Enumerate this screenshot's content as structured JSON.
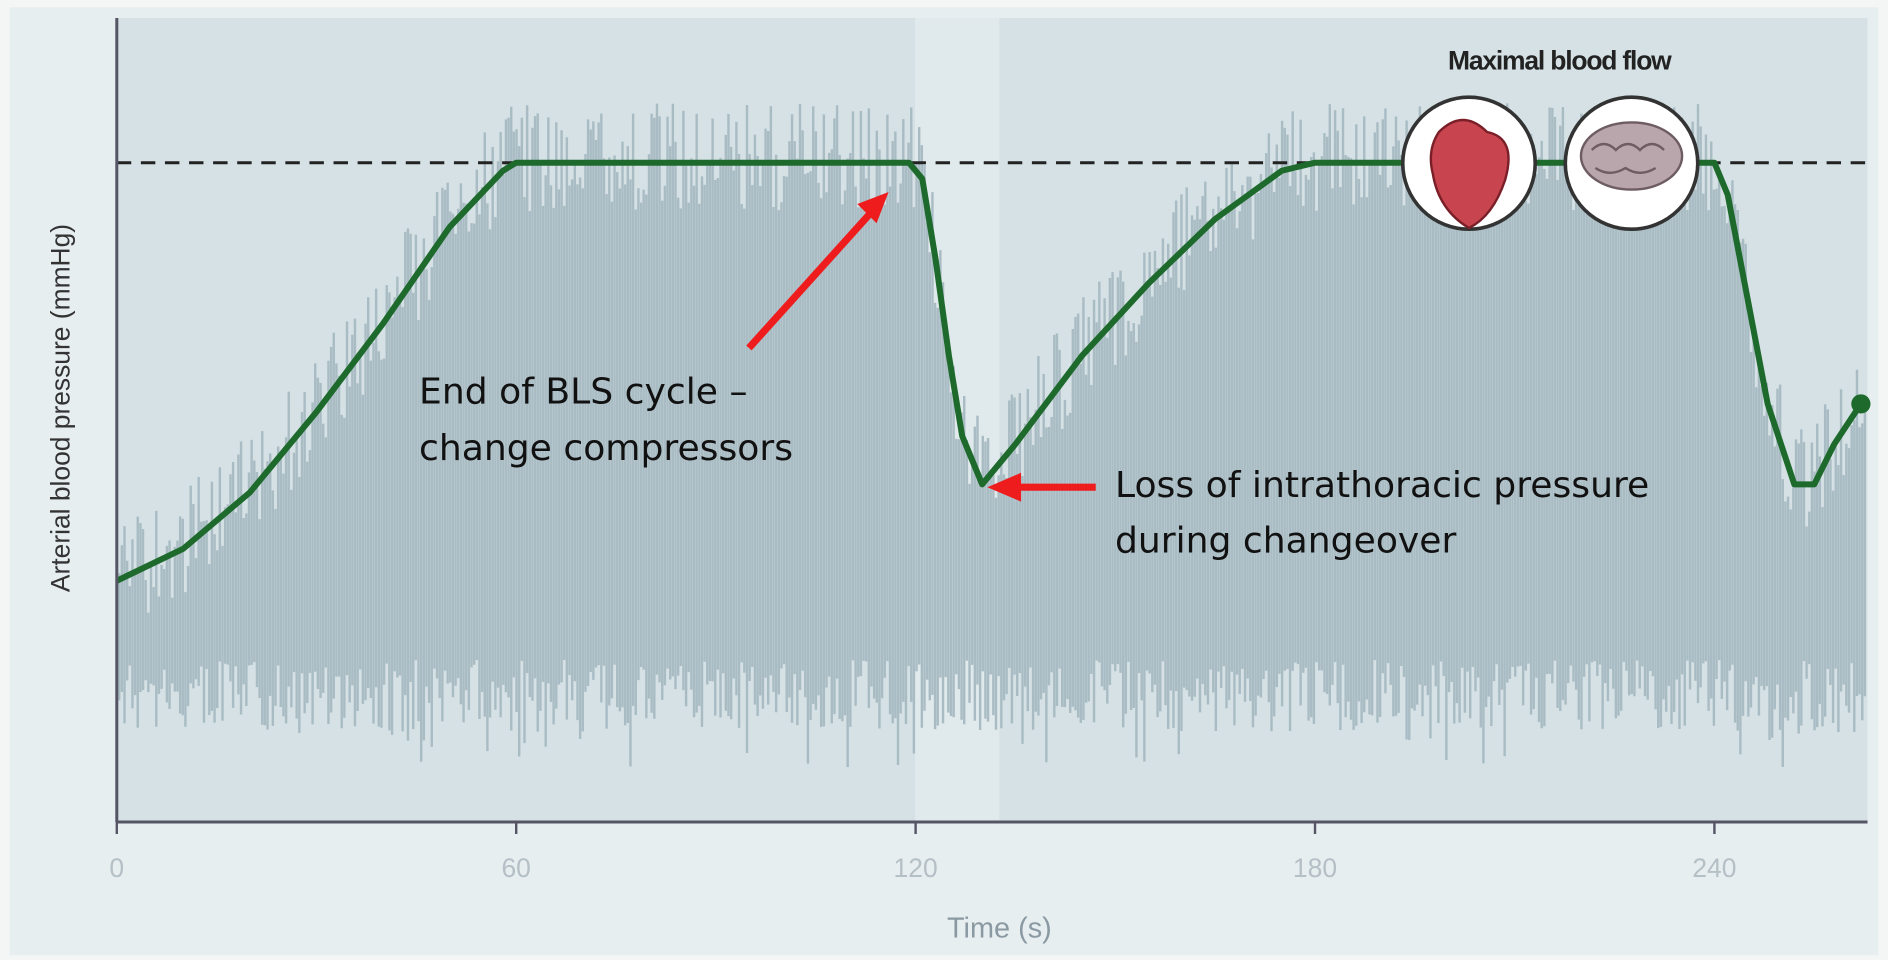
{
  "chart_data": {
    "type": "line",
    "x_label": "Time (s)",
    "y_label": "Arterial blood pressure (mmHg)",
    "x": [
      0,
      10,
      20,
      30,
      40,
      50,
      58,
      60,
      119,
      121,
      123,
      125,
      127,
      130,
      135,
      145,
      155,
      165,
      175,
      180,
      240,
      242,
      245,
      248,
      252,
      255,
      258,
      262
    ],
    "values": [
      30,
      34,
      41,
      51,
      62,
      74,
      81,
      82,
      82,
      80,
      70,
      58,
      48,
      42,
      47,
      58,
      67,
      75,
      81,
      82,
      82,
      78,
      65,
      52,
      42,
      42,
      47,
      52
    ],
    "color": "#1d6a2c",
    "reference_line": 82,
    "xlim": [
      0,
      263
    ],
    "ylim": [
      0,
      100
    ],
    "xticks": [
      0,
      60,
      120,
      180,
      240
    ],
    "icon_caption": "Maximal blood flow",
    "annotations": [
      {
        "lines": [
          "End of BLS cycle –",
          "change compressors"
        ]
      },
      {
        "lines": [
          "Loss of intrathoracic pressure",
          "during changeover"
        ]
      }
    ]
  }
}
